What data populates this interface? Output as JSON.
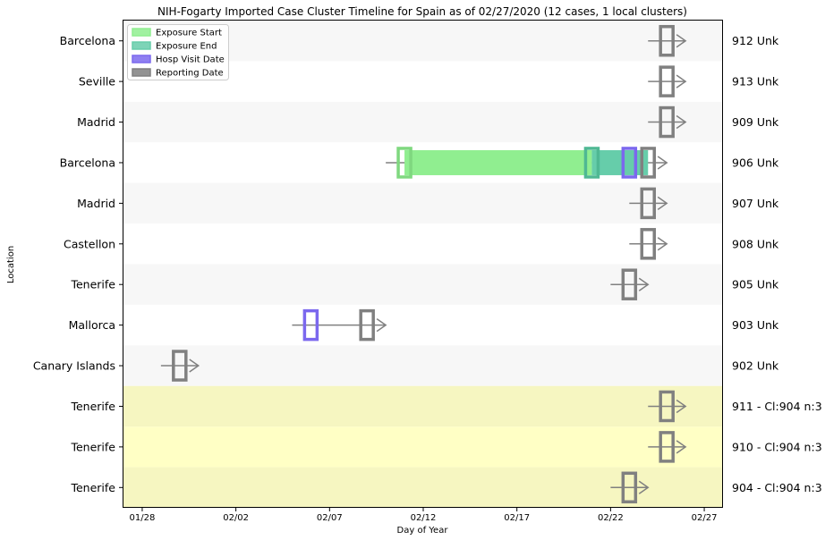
{
  "chart_data": {
    "type": "timeline",
    "title": "NIH-Fogarty Imported Case Cluster Timeline for Spain as of 02/27/2020   (12 cases, 1 local clusters)",
    "xlabel": "Day of Year",
    "ylabel": "Location",
    "xlim": [
      "01/27/2020",
      "02/28/2020"
    ],
    "x_ticks": [
      "01/28",
      "02/02",
      "02/07",
      "02/12",
      "02/17",
      "02/22",
      "02/27"
    ],
    "legend": {
      "position": "top-left",
      "entries": [
        {
          "label": "Exposure Start",
          "color": "#90ee90"
        },
        {
          "label": "Exposure End",
          "color": "#66cdaa"
        },
        {
          "label": "Hosp Visit Date",
          "color": "#7b68ee"
        },
        {
          "label": "Reporting Date",
          "color": "#808080"
        }
      ]
    },
    "colors": {
      "row_alt": "#f7f7f7",
      "row_plain": "#ffffff",
      "cluster_light": "#ffffc5",
      "cluster_dark": "#f6f6c1",
      "line": "#808080"
    },
    "cases": [
      {
        "location": "Barcelona",
        "label": "912 Unk",
        "report": "02/25",
        "line_start": "02/24",
        "arrow_end": "02/26",
        "cluster": false
      },
      {
        "location": "Seville",
        "label": "913 Unk",
        "report": "02/25",
        "line_start": "02/24",
        "arrow_end": "02/26",
        "cluster": false
      },
      {
        "location": "Madrid",
        "label": "909 Unk",
        "report": "02/25",
        "line_start": "02/24",
        "arrow_end": "02/26",
        "cluster": false
      },
      {
        "location": "Barcelona",
        "label": "906 Unk",
        "exposure_start": "02/11",
        "exposure_end": "02/21",
        "hosp_visit": "02/23",
        "report": "02/24",
        "line_start": "02/10",
        "arrow_end": "02/25",
        "cluster": false
      },
      {
        "location": "Madrid",
        "label": "907 Unk",
        "report": "02/24",
        "line_start": "02/23",
        "arrow_end": "02/25",
        "cluster": false
      },
      {
        "location": "Castellon",
        "label": "908 Unk",
        "report": "02/24",
        "line_start": "02/23",
        "arrow_end": "02/25",
        "cluster": false
      },
      {
        "location": "Tenerife",
        "label": "905 Unk",
        "report": "02/23",
        "line_start": "02/22",
        "arrow_end": "02/24",
        "cluster": false
      },
      {
        "location": "Mallorca",
        "label": "903 Unk",
        "hosp_visit": "02/06",
        "report": "02/09",
        "line_start": "02/05",
        "arrow_end": "02/10",
        "cluster": false
      },
      {
        "location": "Canary Islands",
        "label": "902 Unk",
        "report": "01/30",
        "line_start": "01/29",
        "arrow_end": "01/31",
        "cluster": false
      },
      {
        "location": "Tenerife",
        "label": "911 - Cl:904 n:3",
        "report": "02/25",
        "line_start": "02/24",
        "arrow_end": "02/26",
        "cluster": true
      },
      {
        "location": "Tenerife",
        "label": "910 - Cl:904 n:3",
        "report": "02/25",
        "line_start": "02/24",
        "arrow_end": "02/26",
        "cluster": true
      },
      {
        "location": "Tenerife",
        "label": "904 - Cl:904 n:3",
        "report": "02/23",
        "line_start": "02/22",
        "arrow_end": "02/24",
        "cluster": true
      }
    ]
  }
}
